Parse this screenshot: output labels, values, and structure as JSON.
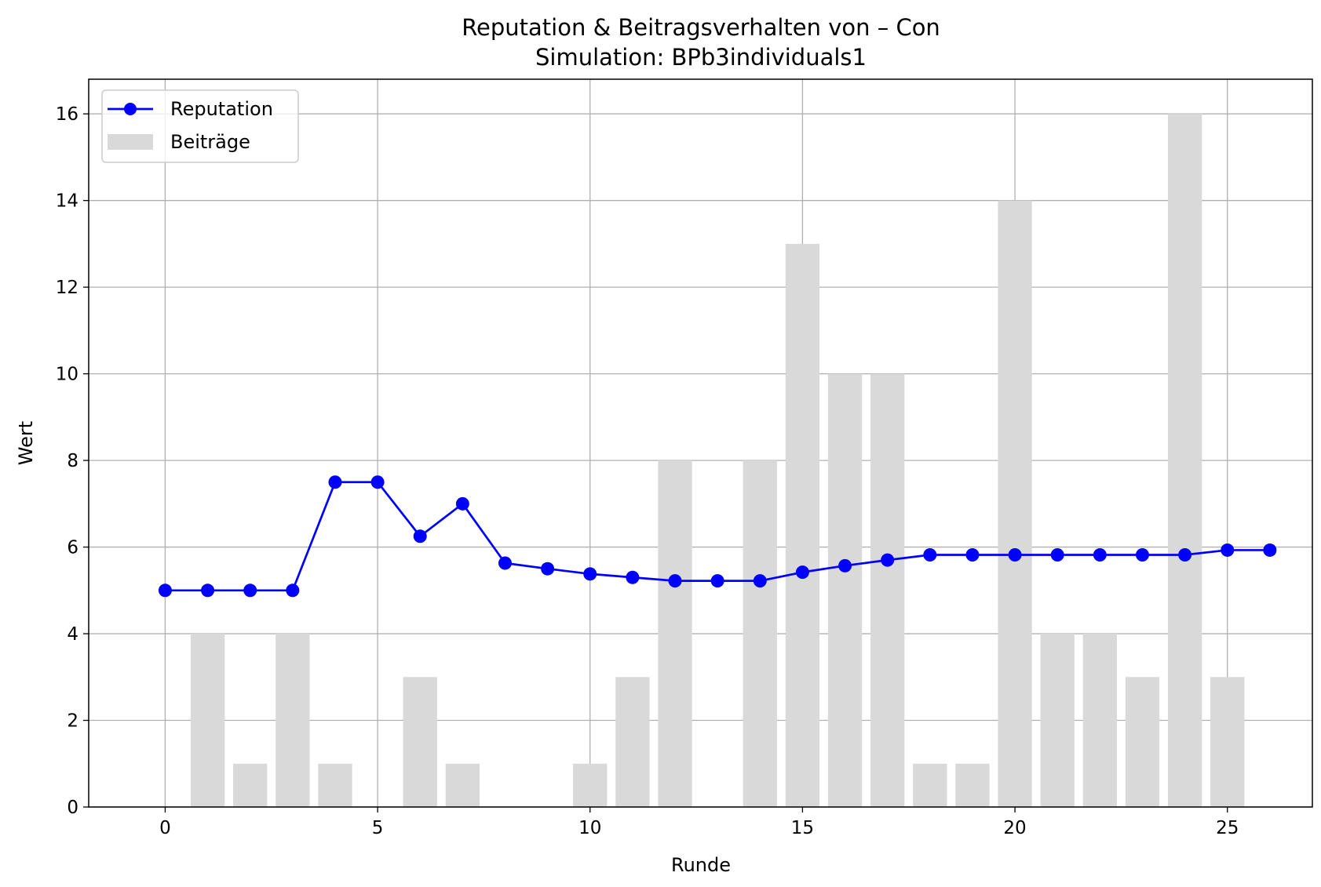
{
  "chart_data": {
    "type": "bar+line",
    "title": "Reputation & Beitragsverhalten von – Con",
    "subtitle": "Simulation: BPb3individuals1",
    "xlabel": "Runde",
    "ylabel": "Wert",
    "xlim": [
      -1.8,
      27.0
    ],
    "ylim": [
      0,
      16.8
    ],
    "xticks": [
      0,
      5,
      10,
      15,
      20,
      25
    ],
    "yticks": [
      0,
      2,
      4,
      6,
      8,
      10,
      12,
      14,
      16
    ],
    "grid": true,
    "legend_position": "top-left",
    "x": [
      0,
      1,
      2,
      3,
      4,
      5,
      6,
      7,
      8,
      9,
      10,
      11,
      12,
      13,
      14,
      15,
      16,
      17,
      18,
      19,
      20,
      21,
      22,
      23,
      24,
      25,
      26
    ],
    "series": [
      {
        "name": "Reputation",
        "kind": "line",
        "color": "#0000ff",
        "marker": "circle",
        "values": [
          5.0,
          5.0,
          5.0,
          5.0,
          7.5,
          7.5,
          6.25,
          7.0,
          5.63,
          5.5,
          5.38,
          5.3,
          5.22,
          5.22,
          5.22,
          5.42,
          5.57,
          5.7,
          5.82,
          5.82,
          5.82,
          5.82,
          5.82,
          5.82,
          5.82,
          5.93,
          5.93
        ]
      },
      {
        "name": "Beiträge",
        "kind": "bar",
        "color": "#d9d9d9",
        "values": [
          0,
          4,
          1,
          4,
          1,
          0,
          3,
          1,
          0,
          0,
          1,
          3,
          8,
          0,
          8,
          13,
          10,
          10,
          1,
          1,
          14,
          4,
          4,
          3,
          16,
          3,
          0
        ]
      }
    ]
  }
}
